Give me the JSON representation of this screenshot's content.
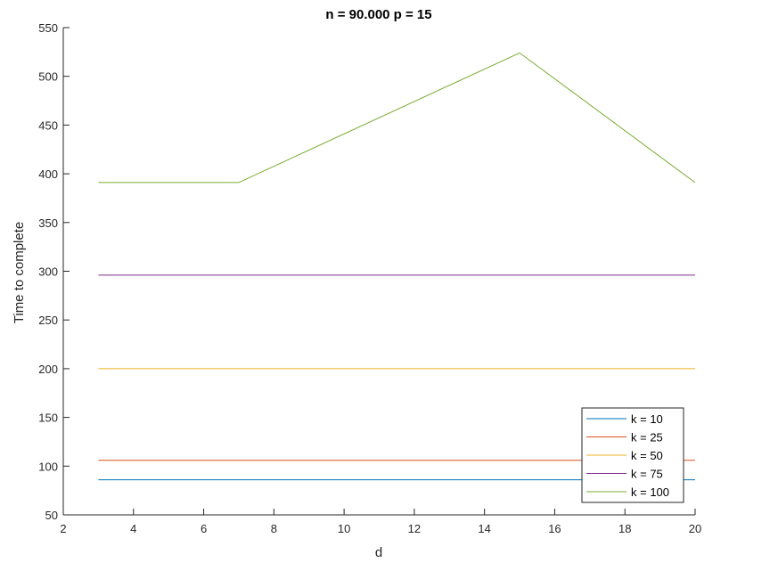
{
  "chart_data": {
    "type": "line",
    "title": "n = 90.000  p = 15",
    "xlabel": "d",
    "ylabel": "Time to complete",
    "xlim": [
      2,
      20
    ],
    "ylim": [
      50,
      550
    ],
    "xticks": [
      "2",
      "4",
      "6",
      "8",
      "10",
      "12",
      "14",
      "16",
      "18",
      "20"
    ],
    "yticks": [
      "50",
      "100",
      "150",
      "200",
      "250",
      "300",
      "350",
      "400",
      "450",
      "500",
      "550"
    ],
    "grid": false,
    "legend_position": "bottom-right",
    "series": [
      {
        "name": "k = 10",
        "color": "#0072BD",
        "x": [
          3,
          20
        ],
        "y": [
          86,
          86
        ]
      },
      {
        "name": "k = 25",
        "color": "#D95319",
        "x": [
          3,
          20
        ],
        "y": [
          106,
          106
        ]
      },
      {
        "name": "k = 50",
        "color": "#EDB120",
        "x": [
          3,
          20
        ],
        "y": [
          200,
          200
        ]
      },
      {
        "name": "k = 75",
        "color": "#7E2F8E",
        "x": [
          3,
          20
        ],
        "y": [
          296,
          296
        ]
      },
      {
        "name": "k = 100",
        "color": "#77AC30",
        "x": [
          3,
          7,
          15,
          20
        ],
        "y": [
          391,
          391,
          524,
          391
        ]
      }
    ]
  }
}
